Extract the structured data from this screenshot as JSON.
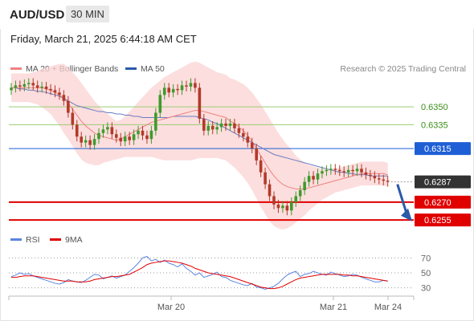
{
  "header": {
    "symbol": "AUD/USD",
    "timeframe": "30 MIN"
  },
  "timestamp": "Friday, March 21, 2025 6:44:18 AM CET",
  "legend": [
    {
      "label": "MA 20 + Bollinger Bands",
      "color": "#f08080"
    },
    {
      "label": "MA 50",
      "color": "#2b5aa8"
    }
  ],
  "credit": "Research © 2025 Trading Central",
  "rsi_legend": [
    {
      "label": "RSI",
      "color": "#5b84e0"
    },
    {
      "label": "9MA",
      "color": "#e00000"
    }
  ],
  "chart_data": [
    {
      "type": "candlestick",
      "title": "AUD/USD",
      "ylim": [
        0.6245,
        0.6375
      ],
      "x_ticks": [
        "Mar 20",
        "Mar 21",
        "Mar 24"
      ],
      "levels": [
        {
          "value": 0.635,
          "label": "0.6350",
          "color": "#9acd72",
          "style": "thin"
        },
        {
          "value": 0.6335,
          "label": "0.6335",
          "color": "#9acd72",
          "style": "thin"
        },
        {
          "value": 0.6315,
          "label": "0.6315",
          "color": "#1f5fd6",
          "style": "box"
        },
        {
          "value": 0.6287,
          "label": "0.6287",
          "color": "#333333",
          "style": "box-current"
        },
        {
          "value": 0.627,
          "label": "0.6270",
          "color": "#e00000",
          "style": "box"
        },
        {
          "value": 0.6255,
          "label": "0.6255",
          "color": "#e00000",
          "style": "box"
        }
      ],
      "closes": [
        0.6366,
        0.6368,
        0.6367,
        0.6369,
        0.637,
        0.6368,
        0.6366,
        0.6367,
        0.6365,
        0.6364,
        0.6362,
        0.636,
        0.6355,
        0.6345,
        0.6335,
        0.6325,
        0.632,
        0.6322,
        0.6318,
        0.6323,
        0.6328,
        0.6331,
        0.6333,
        0.6327,
        0.6324,
        0.6321,
        0.6325,
        0.6322,
        0.6327,
        0.633,
        0.6326,
        0.6323,
        0.633,
        0.6345,
        0.636,
        0.6366,
        0.6362,
        0.6365,
        0.6364,
        0.6368,
        0.6367,
        0.637,
        0.6366,
        0.634,
        0.633,
        0.6334,
        0.6331,
        0.6333,
        0.6336,
        0.6334,
        0.6336,
        0.6332,
        0.6328,
        0.6325,
        0.632,
        0.6315,
        0.6305,
        0.6295,
        0.6285,
        0.6275,
        0.6268,
        0.6265,
        0.6267,
        0.6263,
        0.627,
        0.6275,
        0.628,
        0.6287,
        0.6292,
        0.6289,
        0.6294,
        0.6296,
        0.6297,
        0.6298,
        0.6297,
        0.6296,
        0.6295,
        0.6297,
        0.6296,
        0.6298,
        0.6295,
        0.6293,
        0.6292,
        0.629,
        0.6289,
        0.6288,
        0.6287
      ],
      "ma20": [
        0.6366,
        0.6366,
        0.6366,
        0.6366,
        0.6366,
        0.6366,
        0.6366,
        0.6366,
        0.6365,
        0.6364,
        0.6362,
        0.636,
        0.6357,
        0.6353,
        0.6348,
        0.6343,
        0.6338,
        0.6334,
        0.6331,
        0.6328,
        0.6326,
        0.6325,
        0.6324,
        0.6323,
        0.6322,
        0.6323,
        0.6325,
        0.6327,
        0.6329,
        0.6331,
        0.6333,
        0.6335,
        0.6337,
        0.6338,
        0.6339,
        0.634,
        0.6341,
        0.6342,
        0.6343,
        0.6344,
        0.6345,
        0.6346,
        0.6347,
        0.6347,
        0.6346,
        0.6345,
        0.6344,
        0.6343,
        0.6342,
        0.6341,
        0.6338,
        0.6336,
        0.6333,
        0.633,
        0.6326,
        0.6321,
        0.6315,
        0.6309,
        0.6303,
        0.6297,
        0.6292,
        0.6288,
        0.6285,
        0.6283,
        0.6282,
        0.6281,
        0.6281,
        0.6281,
        0.6282,
        0.6283,
        0.6284,
        0.6285,
        0.6286,
        0.6287,
        0.6288,
        0.6289,
        0.629,
        0.6291,
        0.6292,
        0.6293,
        0.6294,
        0.6294,
        0.6294,
        0.6294,
        0.6294,
        0.6294,
        0.6293
      ],
      "ma50": [
        0.6366,
        0.6366,
        0.6365,
        0.6365,
        0.6364,
        0.6364,
        0.6363,
        0.6363,
        0.6362,
        0.6361,
        0.636,
        0.6359,
        0.6357,
        0.6355,
        0.6353,
        0.6351,
        0.635,
        0.6349,
        0.6348,
        0.6347,
        0.6346,
        0.6346,
        0.6345,
        0.6345,
        0.6344,
        0.6344,
        0.6343,
        0.6343,
        0.6342,
        0.6342,
        0.6341,
        0.6341,
        0.6341,
        0.6341,
        0.6341,
        0.6341,
        0.6341,
        0.6342,
        0.6342,
        0.6342,
        0.6342,
        0.6342,
        0.6342,
        0.6341,
        0.634,
        0.6339,
        0.6337,
        0.6336,
        0.6334,
        0.6332,
        0.633,
        0.6328,
        0.6326,
        0.6324,
        0.6322,
        0.632,
        0.6318,
        0.6316,
        0.6314,
        0.6312,
        0.631,
        0.6309,
        0.6308,
        0.6307,
        0.6306,
        0.6305,
        0.6304,
        0.6303,
        0.6302,
        0.6301,
        0.63,
        0.6299,
        0.6298,
        0.6297,
        0.6296,
        0.6295,
        0.6295,
        0.6294,
        0.6294,
        0.6293,
        0.6293,
        0.6293,
        0.6292,
        0.6292,
        0.6292,
        0.6292,
        0.6292
      ],
      "bb_width": [
        0.0012,
        0.0012,
        0.0012,
        0.0012,
        0.0012,
        0.0013,
        0.0014,
        0.0016,
        0.0018,
        0.002,
        0.0023,
        0.0026,
        0.0029,
        0.003,
        0.0031,
        0.0032,
        0.0032,
        0.0031,
        0.0029,
        0.0027,
        0.0025,
        0.0022,
        0.002,
        0.0018,
        0.0016,
        0.0016,
        0.0017,
        0.0019,
        0.0021,
        0.0023,
        0.0025,
        0.0027,
        0.0029,
        0.0031,
        0.0033,
        0.0035,
        0.0036,
        0.0037,
        0.0038,
        0.0039,
        0.004,
        0.0041,
        0.0041,
        0.004,
        0.0039,
        0.0038,
        0.0037,
        0.0036,
        0.0036,
        0.0036,
        0.0036,
        0.0037,
        0.0038,
        0.0039,
        0.004,
        0.0041,
        0.0042,
        0.0043,
        0.0043,
        0.0043,
        0.0042,
        0.004,
        0.0038,
        0.0035,
        0.0032,
        0.0028,
        0.0025,
        0.0022,
        0.0019,
        0.0017,
        0.0015,
        0.0013,
        0.0012,
        0.0011,
        0.001,
        0.001,
        0.001,
        0.001,
        0.001,
        0.001,
        0.001,
        0.001,
        0.001,
        0.001,
        0.001,
        0.001,
        0.001
      ],
      "arrow": {
        "from": 0.6285,
        "to": 0.6258,
        "color": "#2b5aa8"
      }
    },
    {
      "type": "line",
      "title": "RSI",
      "ylim": [
        20,
        80
      ],
      "y_ticks": [
        70,
        50,
        30
      ],
      "series": [
        {
          "name": "RSI",
          "color": "#5b84e0",
          "values": [
            45,
            47,
            50,
            48,
            49,
            46,
            44,
            42,
            40,
            38,
            36,
            35,
            37,
            41,
            39,
            38,
            37,
            40,
            44,
            48,
            47,
            42,
            44,
            46,
            43,
            45,
            47,
            52,
            57,
            63,
            70,
            72,
            66,
            68,
            64,
            67,
            63,
            61,
            58,
            62,
            56,
            52,
            47,
            50,
            44,
            46,
            48,
            51,
            45,
            44,
            40,
            38,
            36,
            34,
            33,
            36,
            31,
            30,
            28,
            30,
            32,
            36,
            42,
            47,
            50,
            52,
            45,
            48,
            49,
            52,
            50,
            48,
            47,
            51,
            49,
            47,
            45,
            46,
            48,
            47,
            44,
            42,
            40,
            38,
            38,
            40,
            39
          ]
        },
        {
          "name": "9MA",
          "color": "#e00000",
          "values": [
            44,
            44,
            45,
            46,
            46,
            46,
            45,
            44,
            43,
            42,
            41,
            40,
            39,
            39,
            39,
            38,
            38,
            38,
            39,
            41,
            42,
            43,
            44,
            45,
            45,
            46,
            47,
            48,
            51,
            54,
            57,
            61,
            63,
            64,
            65,
            66,
            66,
            65,
            64,
            63,
            61,
            59,
            56,
            54,
            52,
            50,
            49,
            48,
            47,
            46,
            45,
            43,
            41,
            39,
            37,
            35,
            33,
            31,
            30,
            29,
            29,
            30,
            32,
            35,
            38,
            41,
            43,
            44,
            45,
            46,
            47,
            48,
            48,
            48,
            48,
            48,
            47,
            47,
            46,
            46,
            45,
            44,
            43,
            42,
            41,
            40,
            39
          ]
        }
      ]
    }
  ]
}
